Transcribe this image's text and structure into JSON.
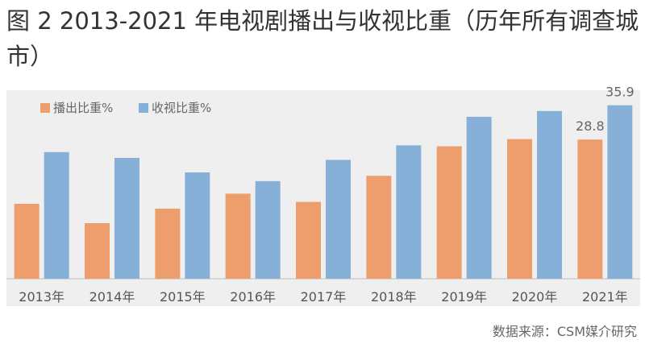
{
  "title": "图 2 2013-2021 年电视剧播出与收视比重（历年所有调查城市）",
  "source": "数据来源：CSM媒介研究",
  "chart_data": {
    "type": "bar",
    "categories": [
      "2013年",
      "2014年",
      "2015年",
      "2016年",
      "2017年",
      "2018年",
      "2019年",
      "2020年",
      "2021年"
    ],
    "series": [
      {
        "name": "播出比重%",
        "color": "#ed9e6c",
        "values": [
          15.5,
          11.5,
          14.5,
          17.6,
          15.9,
          21.3,
          27.4,
          28.9,
          28.8
        ]
      },
      {
        "name": "收视比重%",
        "color": "#87b0d9",
        "values": [
          26.2,
          25.0,
          22.0,
          20.2,
          24.6,
          27.6,
          33.5,
          34.7,
          35.9
        ]
      }
    ],
    "data_labels": [
      {
        "series": 0,
        "index": 8,
        "text": "28.8"
      },
      {
        "series": 1,
        "index": 8,
        "text": "35.9"
      }
    ],
    "ylim": [
      0,
      40
    ],
    "legend": "top-left",
    "grid": false
  }
}
